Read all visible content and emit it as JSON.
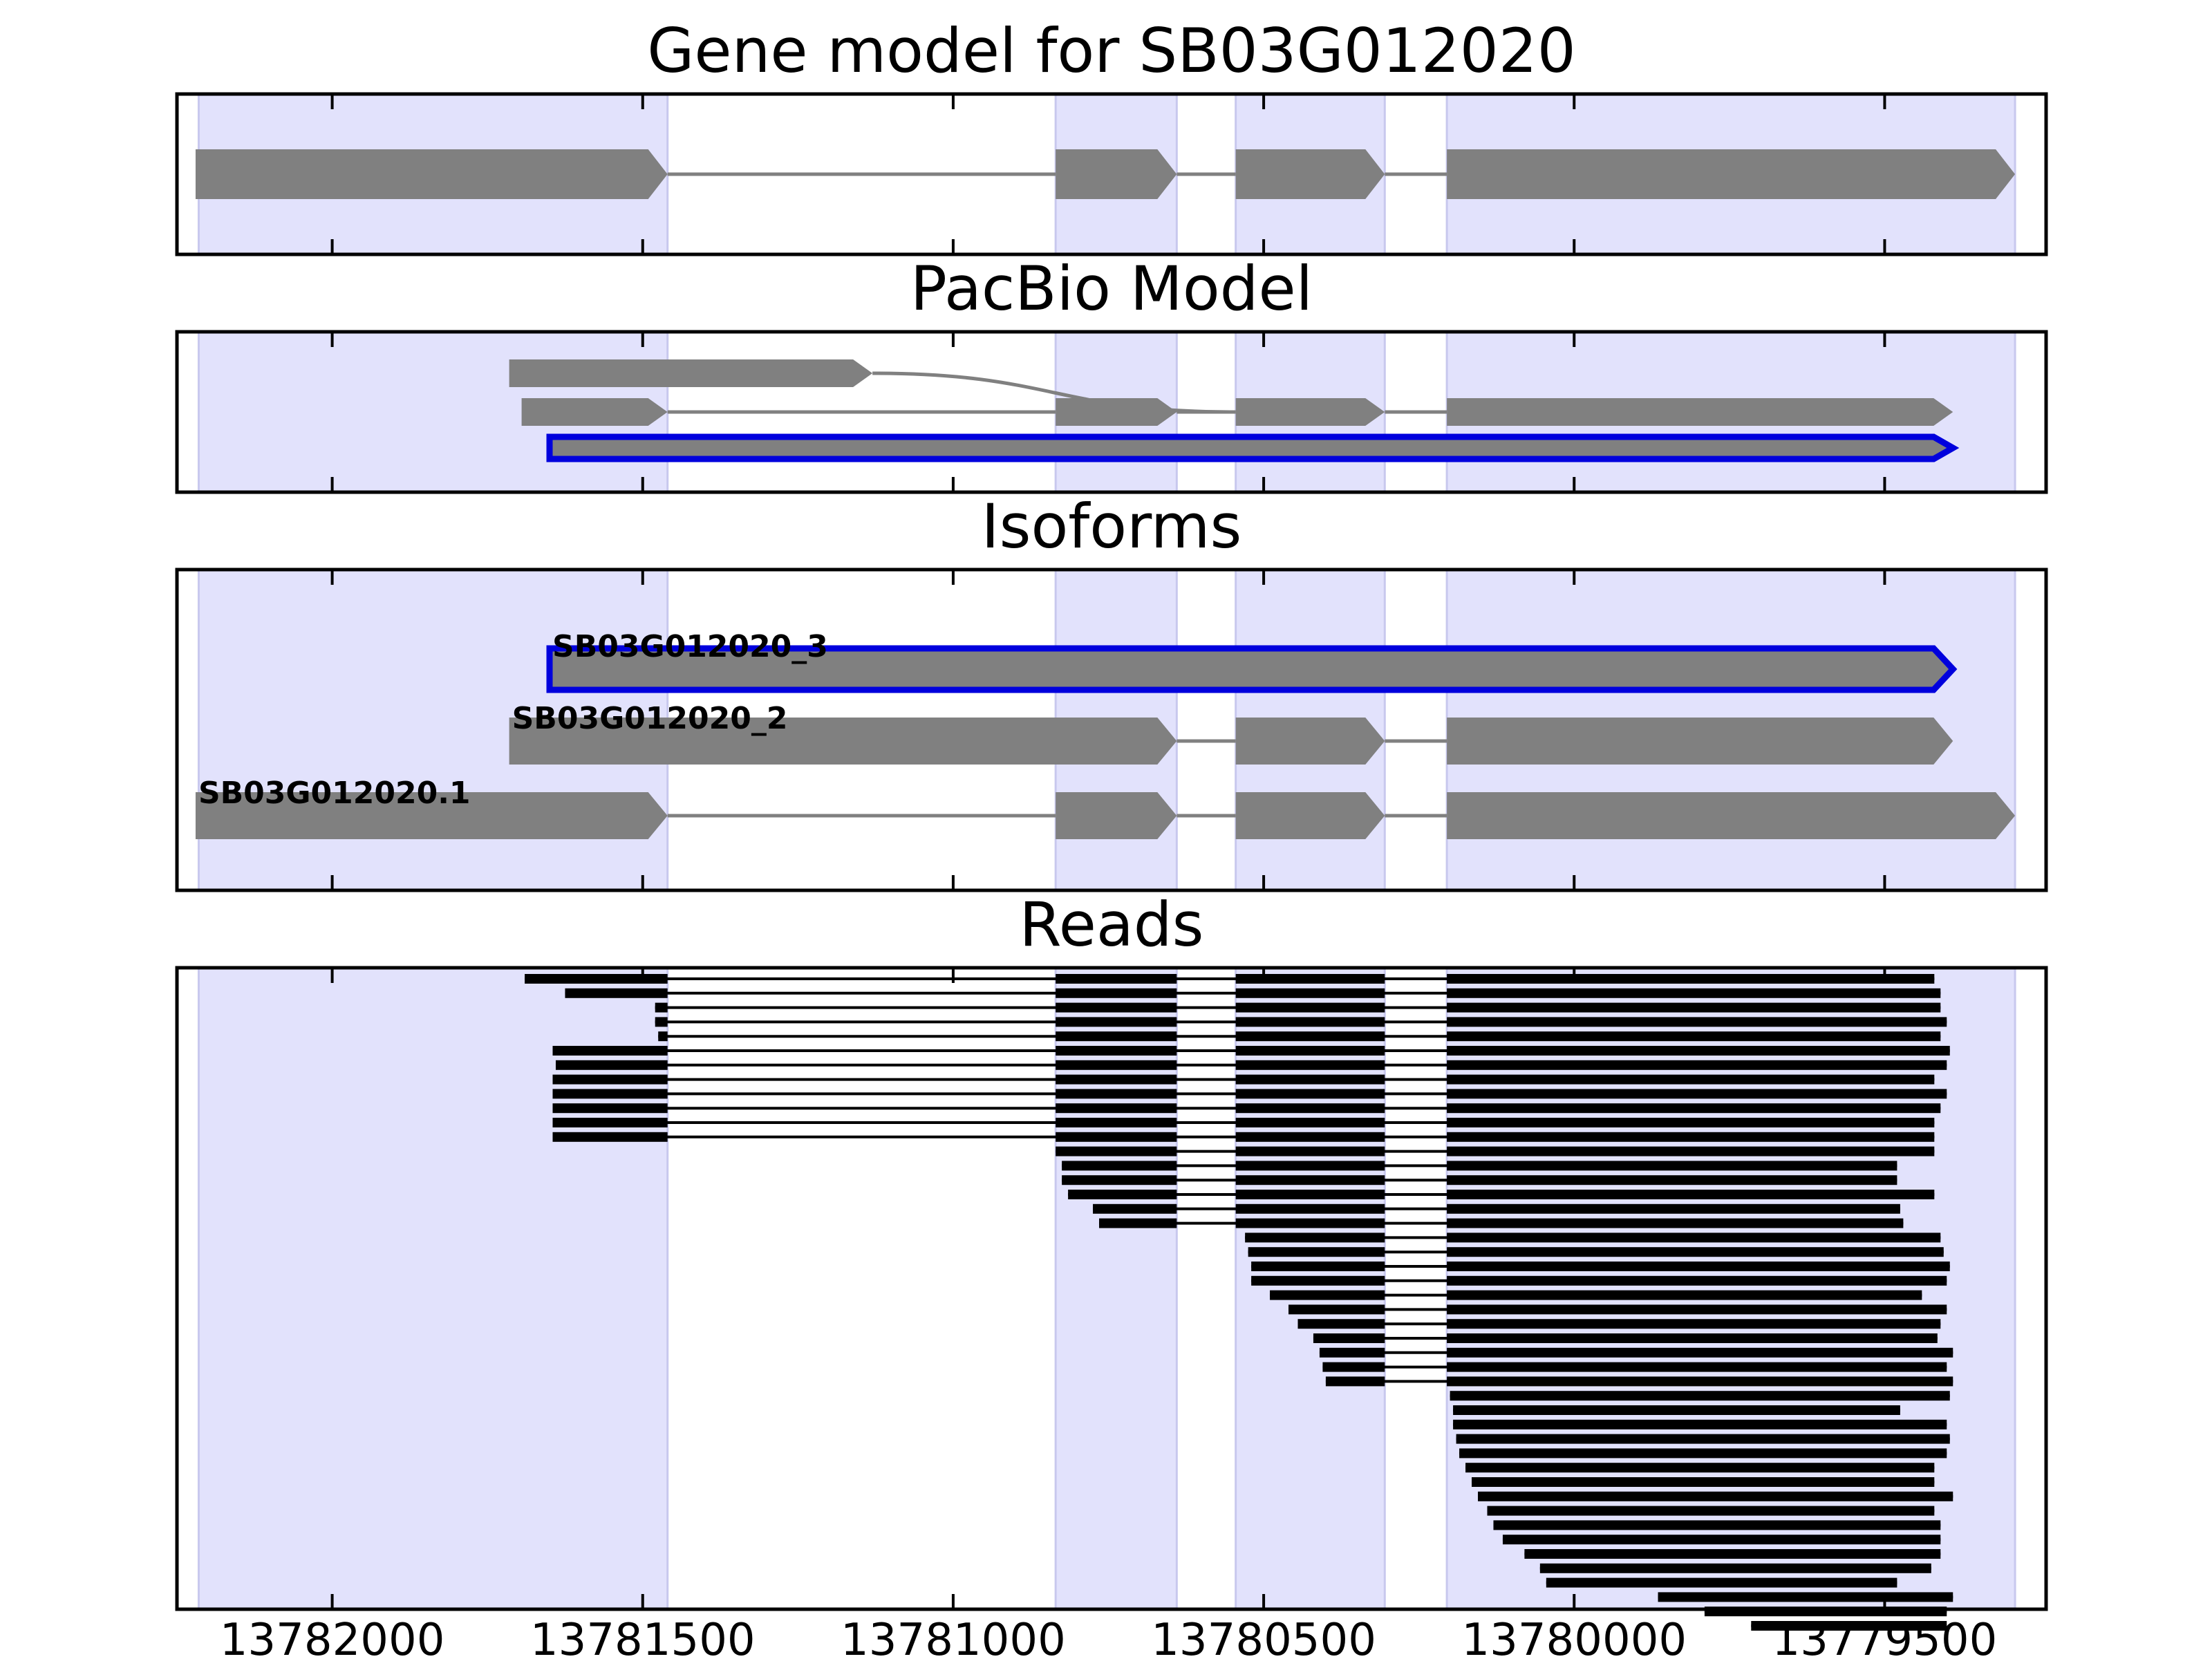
{
  "colors": {
    "exon_band": "#e2e2fc",
    "feature": "#808080",
    "highlight": "#0000dd",
    "read": "#000000",
    "connector": "#808080"
  },
  "chart_data": {
    "type": "gene-model-tracks",
    "xlim": [
      13782250,
      13779240
    ],
    "x_reversed": true,
    "x_ticks": [
      13782000,
      13781500,
      13781000,
      13780500,
      13780000,
      13779500
    ],
    "x_tick_labels": [
      "13782000",
      "13781500",
      "13781000",
      "13780500",
      "13780000",
      "13779500"
    ],
    "exon_bands": [
      [
        13782215,
        13781460
      ],
      [
        13780835,
        13780640
      ],
      [
        13780545,
        13780305
      ],
      [
        13780205,
        13779290
      ]
    ],
    "panels": [
      {
        "title": "Gene model for SB03G012020",
        "features": [
          {
            "exons": [
              [
                13782220,
                13781460
              ],
              [
                13780835,
                13780640
              ],
              [
                13780545,
                13780305
              ],
              [
                13780205,
                13779290
              ]
            ]
          }
        ]
      },
      {
        "title": "PacBio Model",
        "features": [
          {
            "exons": [
              [
                13781715,
                13781130
              ]
            ],
            "link_to": 13780545
          },
          {
            "exons": [
              [
                13781695,
                13781460
              ],
              [
                13780835,
                13780640
              ],
              [
                13780545,
                13780305
              ],
              [
                13780205,
                13779390
              ]
            ]
          },
          {
            "exons": [
              [
                13781650,
                13779390
              ]
            ],
            "highlight": true
          }
        ]
      },
      {
        "title": "Isoforms",
        "features": [
          {
            "label": "SB03G012020_3",
            "exons": [
              [
                13781650,
                13779390
              ]
            ],
            "highlight": true
          },
          {
            "label": "SB03G012020_2",
            "exons": [
              [
                13781715,
                13780640
              ],
              [
                13780545,
                13780305
              ],
              [
                13780205,
                13779390
              ]
            ]
          },
          {
            "label": "SB03G012020.1",
            "exons": [
              [
                13782220,
                13781460
              ],
              [
                13780835,
                13780640
              ],
              [
                13780545,
                13780305
              ],
              [
                13780205,
                13779290
              ]
            ]
          }
        ]
      },
      {
        "title": "Reads",
        "reads": [
          [
            13781690,
            13779420
          ],
          [
            13781625,
            13779410
          ],
          [
            13781480,
            13779410
          ],
          [
            13781480,
            13779400
          ],
          [
            13781475,
            13779410
          ],
          [
            13781645,
            13779395
          ],
          [
            13781640,
            13779400
          ],
          [
            13781645,
            13779420
          ],
          [
            13781645,
            13779400
          ],
          [
            13781645,
            13779410
          ],
          [
            13781645,
            13779420
          ],
          [
            13781645,
            13779420
          ],
          [
            13780835,
            13779420
          ],
          [
            13780825,
            13779480
          ],
          [
            13780825,
            13779480
          ],
          [
            13780815,
            13779420
          ],
          [
            13780775,
            13779475
          ],
          [
            13780765,
            13779470
          ],
          [
            13780530,
            13779410
          ],
          [
            13780525,
            13779405
          ],
          [
            13780520,
            13779395
          ],
          [
            13780520,
            13779400
          ],
          [
            13780490,
            13779440
          ],
          [
            13780460,
            13779400
          ],
          [
            13780445,
            13779410
          ],
          [
            13780420,
            13779415
          ],
          [
            13780410,
            13779390
          ],
          [
            13780405,
            13779400
          ],
          [
            13780400,
            13779390
          ],
          [
            13780200,
            13779395
          ],
          [
            13780195,
            13779475
          ],
          [
            13780195,
            13779400
          ],
          [
            13780190,
            13779395
          ],
          [
            13780185,
            13779400
          ],
          [
            13780175,
            13779420
          ],
          [
            13780165,
            13779420
          ],
          [
            13780155,
            13779390
          ],
          [
            13780140,
            13779420
          ],
          [
            13780130,
            13779410
          ],
          [
            13780115,
            13779410
          ],
          [
            13780080,
            13779410
          ],
          [
            13780055,
            13779425
          ],
          [
            13780045,
            13779480
          ],
          [
            13779865,
            13779390
          ],
          [
            13779790,
            13779400
          ],
          [
            13779715,
            13779400
          ]
        ]
      }
    ]
  }
}
